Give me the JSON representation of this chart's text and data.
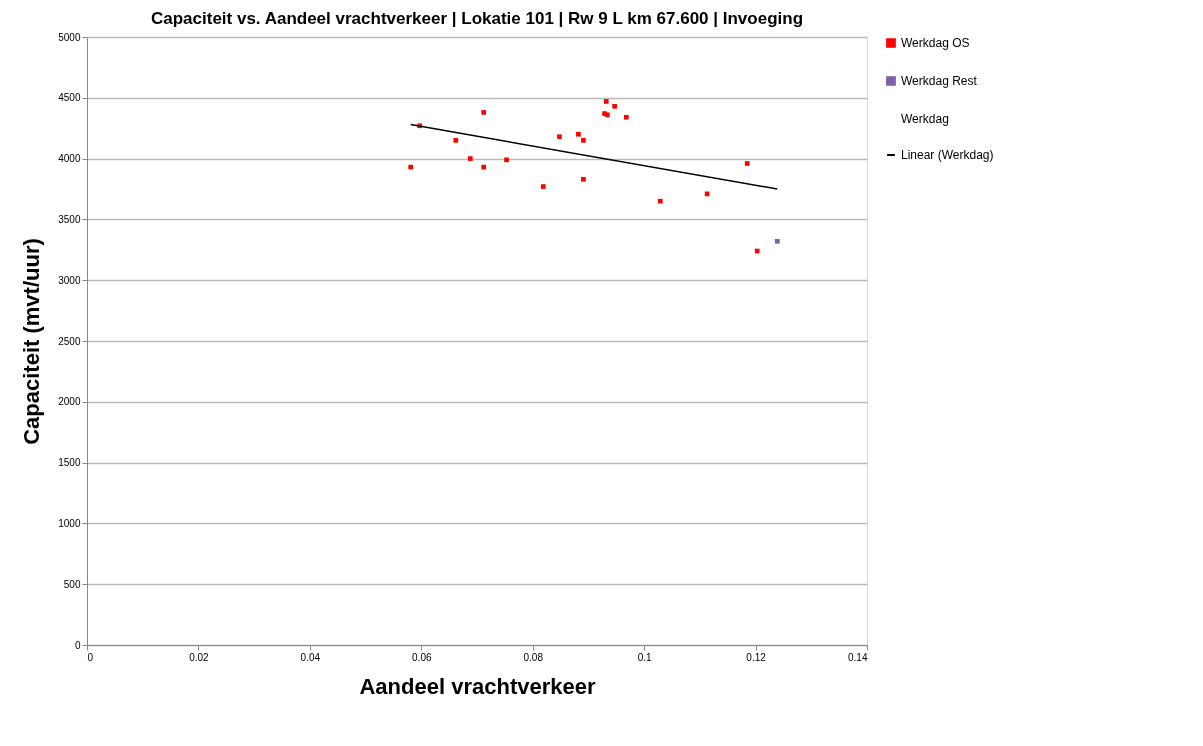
{
  "chart_data": {
    "type": "scatter",
    "title": "Capaciteit vs. Aandeel vrachtverkeer   |   Lokatie 101   |   Rw 9 L  km 67.600   |   Invoeging",
    "xlabel": "Aandeel vrachtverkeer",
    "ylabel": "Capaciteit (mvt/uur)",
    "xlim": [
      0,
      0.14
    ],
    "xticks": [
      0,
      0.02,
      0.04,
      0.06,
      0.08,
      0.1,
      0.12,
      0.14
    ],
    "ylim": [
      0,
      5000
    ],
    "yticks": [
      0,
      500,
      1000,
      1500,
      2000,
      2500,
      3000,
      3500,
      4000,
      4500,
      5000
    ],
    "grid": "y",
    "legend": "right",
    "series": [
      {
        "name": "Werkdag OS",
        "marker": "square",
        "color": "#ff0000",
        "x": [
          0.0581,
          0.0597,
          0.0662,
          0.0688,
          0.0712,
          0.0712,
          0.0753,
          0.0819,
          0.0848,
          0.0882,
          0.0891,
          0.0891,
          0.0932,
          0.0947,
          0.0929,
          0.0934,
          0.0968,
          0.1029,
          0.1113,
          0.1185,
          0.1203
        ],
        "values": [
          3930,
          4270,
          4150,
          4000,
          4380,
          3930,
          3990,
          3770,
          4180,
          4200,
          4150,
          3830,
          4470,
          4430,
          4370,
          4360,
          4340,
          3650,
          3710,
          3960,
          3240
        ]
      },
      {
        "name": "Werkdag Rest",
        "marker": "square",
        "color": "#7f5fa8",
        "x": [
          0.1239
        ],
        "values": [
          3320
        ]
      },
      {
        "name": "Werkdag"
      },
      {
        "name": "Linear (Werkdag)",
        "type": "line",
        "color": "#000000",
        "x": [
          0.0581,
          0.1239
        ],
        "values": [
          4280,
          3750
        ]
      }
    ]
  }
}
